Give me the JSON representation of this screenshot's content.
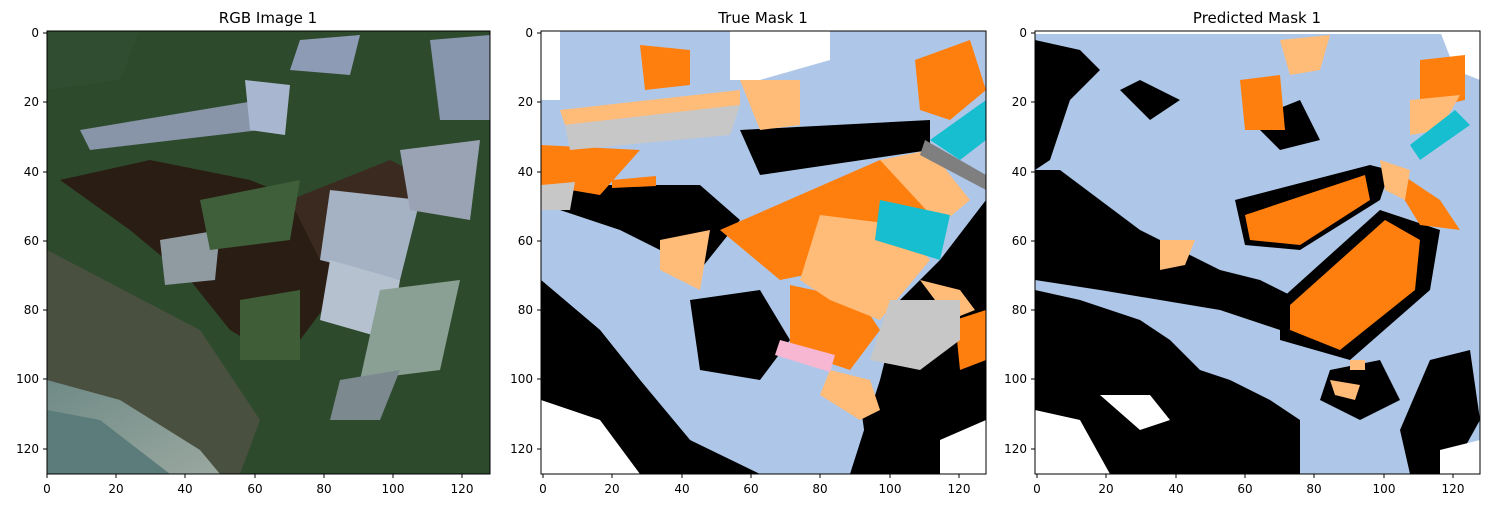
{
  "panels": [
    {
      "title": "RGB Image 1"
    },
    {
      "title": "True Mask 1"
    },
    {
      "title": "Predicted Mask 1"
    }
  ],
  "axes": {
    "x_ticks": [
      "0",
      "20",
      "40",
      "60",
      "80",
      "100",
      "120"
    ],
    "y_ticks": [
      "0",
      "20",
      "40",
      "60",
      "80",
      "100",
      "120"
    ]
  },
  "colors": {
    "background": "#000000",
    "field": "#aec7e8",
    "orange": "#ff7f0e",
    "light_orange": "#ffbb78",
    "gray": "#c7c7c7",
    "dark_gray": "#7f7f7f",
    "cyan": "#17becf",
    "pink": "#f7b6d2",
    "white": "#ffffff"
  }
}
